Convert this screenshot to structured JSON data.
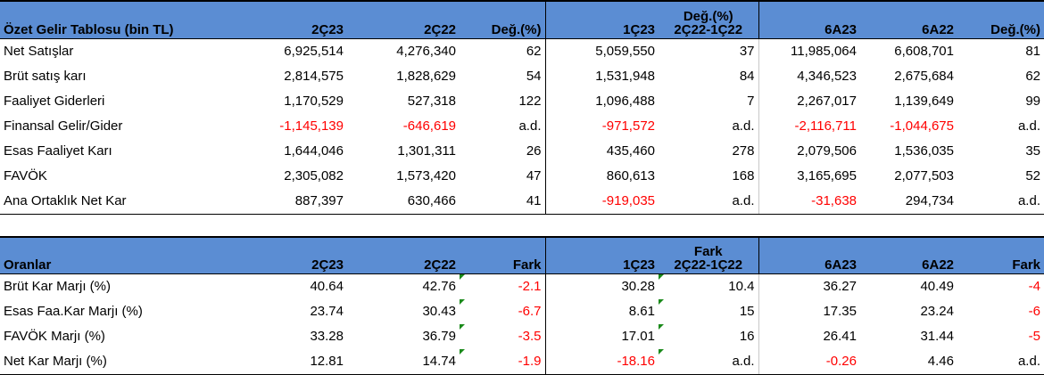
{
  "income": {
    "headers": [
      "Özet Gelir Tablosu (bin TL)",
      "2Ç23",
      "2Ç22",
      "Değ.(%)",
      "1Ç23",
      "Değ.(%)\n2Ç22-1Ç22",
      "6A23",
      "6A22",
      "Değ.(%)"
    ],
    "header_col5_line1": "Değ.(%)",
    "header_col5_line2": "2Ç22-1Ç22",
    "rows": [
      [
        "Net Satışlar",
        "6,925,514",
        "4,276,340",
        "62",
        "5,059,550",
        "37",
        "11,985,064",
        "6,608,701",
        "81"
      ],
      [
        "Brüt satış karı",
        "2,814,575",
        "1,828,629",
        "54",
        "1,531,948",
        "84",
        "4,346,523",
        "2,675,684",
        "62"
      ],
      [
        "Faaliyet Giderleri",
        "1,170,529",
        "527,318",
        "122",
        "1,096,488",
        "7",
        "2,267,017",
        "1,139,649",
        "99"
      ],
      [
        "Finansal Gelir/Gider",
        "-1,145,139",
        "-646,619",
        "a.d.",
        "-971,572",
        "a.d.",
        "-2,116,711",
        "-1,044,675",
        "a.d."
      ],
      [
        "Esas Faaliyet Karı",
        "1,644,046",
        "1,301,311",
        "26",
        "435,460",
        "278",
        "2,079,506",
        "1,536,035",
        "35"
      ],
      [
        "FAVÖK",
        "2,305,082",
        "1,573,420",
        "47",
        "860,613",
        "168",
        "3,165,695",
        "2,077,503",
        "52"
      ],
      [
        "Ana Ortaklık Net Kar",
        "887,397",
        "630,466",
        "41",
        "-919,035",
        "a.d.",
        "-31,638",
        "294,734",
        "a.d."
      ]
    ]
  },
  "ratios": {
    "headers": [
      "Oranlar",
      "2Ç23",
      "2Ç22",
      "Fark",
      "1Ç23",
      "",
      "6A23",
      "6A22",
      "Fark"
    ],
    "header_col5_line1": "Fark",
    "header_col5_line2": "2Ç22-1Ç22",
    "rows": [
      [
        "Brüt Kar Marjı (%)",
        "40.64",
        "42.76",
        "-2.1",
        "30.28",
        "10.4",
        "36.27",
        "40.49",
        "-4"
      ],
      [
        "Esas Faa.Kar Marjı (%)",
        "23.74",
        "30.43",
        "-6.7",
        "8.61",
        "15",
        "17.35",
        "23.24",
        "-6"
      ],
      [
        "FAVÖK Marjı (%)",
        "33.28",
        "36.79",
        "-3.5",
        "17.01",
        "16",
        "26.41",
        "31.44",
        "-5"
      ],
      [
        "Net Kar Marjı (%)",
        "12.81",
        "14.74",
        "-1.9",
        "-18.16",
        "a.d.",
        "-0.26",
        "4.46",
        "a.d."
      ]
    ]
  },
  "colors": {
    "header_bg": "#5b8dd3",
    "negative": "#ff0000",
    "flag": "#1a8a1a"
  }
}
